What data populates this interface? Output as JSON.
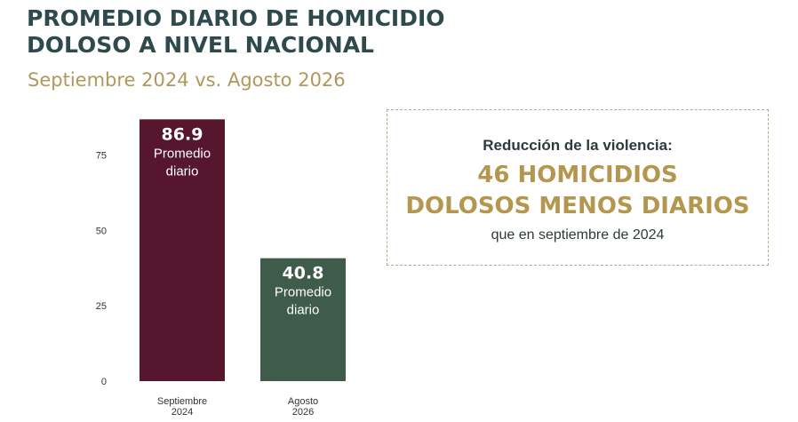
{
  "title": {
    "line1": "PROMEDIO DIARIO DE HOMICIDIO",
    "line2": "DOLOSO A NIVEL NACIONAL"
  },
  "subtitle": "Septiembre 2024 vs. Agosto 2026",
  "chart_data": {
    "type": "bar",
    "categories": [
      [
        "Septiembre",
        "2024"
      ],
      [
        "Agosto",
        "2026"
      ]
    ],
    "values": [
      86.9,
      40.8
    ],
    "value_labels": [
      "86.9",
      "40.8"
    ],
    "bar_sublabel": [
      "Promedio",
      "diario"
    ],
    "bar_colors": [
      "#56162e",
      "#3f5c4a"
    ],
    "yticks": [
      0,
      25,
      50,
      75
    ],
    "ylim": [
      0,
      87
    ],
    "grid": false
  },
  "callout": {
    "lead": "Reducción de la violencia:",
    "highlight_line1": "46 HOMICIDIOS",
    "highlight_line2": "DOLOSOS MENOS DIARIOS",
    "tail": "que en septiembre de 2024"
  },
  "colors": {
    "title": "#2f4a4c",
    "accent_gold": "#b5964f"
  }
}
